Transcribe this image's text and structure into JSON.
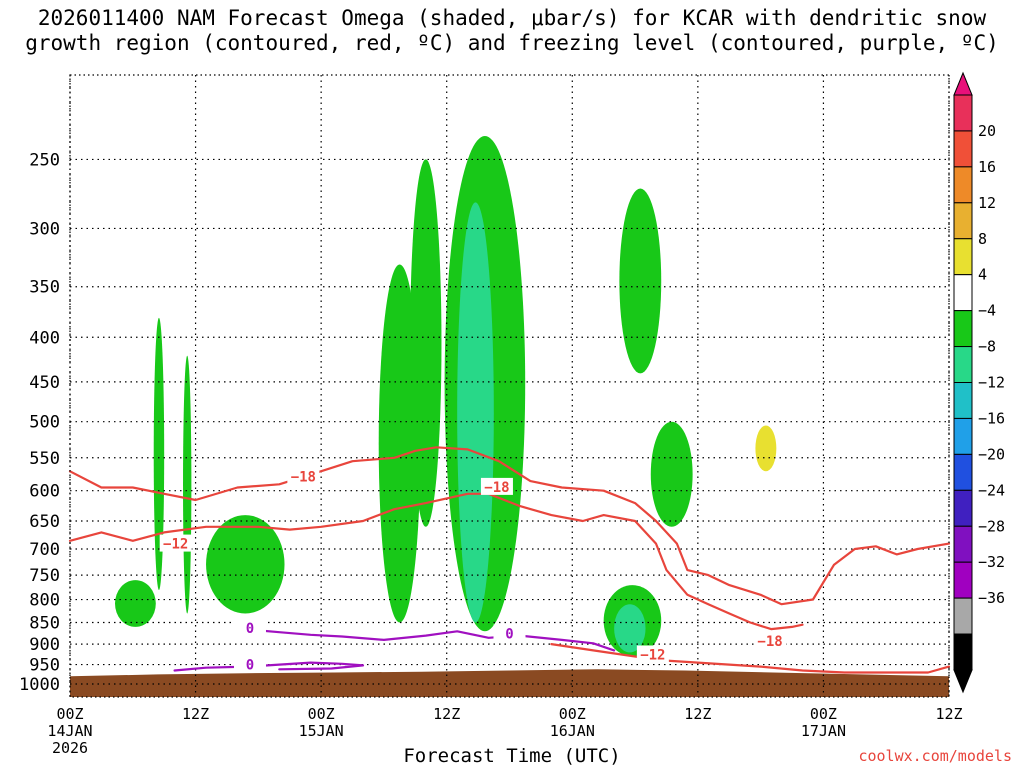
{
  "title": "2026011400 NAM Forecast Omega (shaded, μbar/s) for KCAR with dendritic snow\ngrowth region (contoured, red, ºC) and freezing level (contoured, purple, ºC)",
  "credit": "coolwx.com/models",
  "chart_data": {
    "type": "time-height cross section",
    "title": "2026011400 NAM Forecast Omega (shaded, μbar/s) for KCAR with dendritic snow growth region (contoured, red, ºC) and freezing level (contoured, purple, ºC)",
    "xlabel": "Forecast Time (UTC)",
    "ylabel": "",
    "x_range_hours": [
      0,
      84
    ],
    "y_range_hpa": [
      1035,
      200
    ],
    "y_scale": "log-pressure",
    "yticks": [
      250,
      300,
      350,
      400,
      450,
      500,
      550,
      600,
      650,
      700,
      750,
      800,
      850,
      900,
      950,
      1000
    ],
    "xticks": [
      {
        "hour": 0,
        "label": "00Z",
        "date": "14JAN",
        "year": "2026"
      },
      {
        "hour": 12,
        "label": "12Z",
        "date": "",
        "year": ""
      },
      {
        "hour": 24,
        "label": "00Z",
        "date": "15JAN",
        "year": ""
      },
      {
        "hour": 36,
        "label": "12Z",
        "date": "",
        "year": ""
      },
      {
        "hour": 48,
        "label": "00Z",
        "date": "16JAN",
        "year": ""
      },
      {
        "hour": 60,
        "label": "12Z",
        "date": "",
        "year": ""
      },
      {
        "hour": 72,
        "label": "00Z",
        "date": "17JAN",
        "year": ""
      },
      {
        "hour": 84,
        "label": "12Z",
        "date": "",
        "year": ""
      }
    ],
    "grid": true,
    "colorbar": {
      "units": "μbar/s",
      "labels": [
        "20",
        "16",
        "12",
        "8",
        "4",
        "−4",
        "−8",
        "−12",
        "−16",
        "−20",
        "−24",
        "−28",
        "−32",
        "−36"
      ],
      "colors": [
        "#e8305a",
        "#f05038",
        "#ee8a28",
        "#e8b030",
        "#e8e030",
        "#ffffff",
        "#18c818",
        "#28d888",
        "#20c0c8",
        "#20a0e8",
        "#2050e0",
        "#4020c0",
        "#8010c0",
        "#a000c0",
        "#a8a8a8",
        "#000000"
      ],
      "top_arrow_color": "#e8107a",
      "bottom_arrow_color": "#000000"
    },
    "contour_labels": [
      {
        "text": "−18",
        "hour": 22.3,
        "hpa": 578,
        "color": "#e8453c"
      },
      {
        "text": "−18",
        "hour": 40.8,
        "hpa": 594,
        "color": "#e8453c"
      },
      {
        "text": "−12",
        "hour": 10.1,
        "hpa": 690,
        "color": "#e8453c"
      },
      {
        "text": "−12",
        "hour": 55.7,
        "hpa": 925,
        "color": "#e8453c"
      },
      {
        "text": "−18",
        "hour": 66.9,
        "hpa": 893,
        "color": "#e8453c"
      },
      {
        "text": "0",
        "hour": 17.2,
        "hpa": 863,
        "color": "#a010c0"
      },
      {
        "text": "0",
        "hour": 42.0,
        "hpa": 875,
        "color": "#a010c0"
      },
      {
        "text": "0",
        "hour": 17.2,
        "hpa": 950,
        "color": "#a010c0"
      }
    ],
    "contours": [
      {
        "name": "dendritic-lower -18C",
        "color": "#e8453c",
        "points": [
          [
            0,
            685
          ],
          [
            3,
            670
          ],
          [
            6,
            685
          ],
          [
            9,
            670
          ],
          [
            13,
            660
          ],
          [
            18,
            660
          ],
          [
            21,
            665
          ],
          [
            24,
            660
          ],
          [
            28,
            650
          ],
          [
            31,
            630
          ],
          [
            34,
            620
          ],
          [
            38,
            605
          ],
          [
            40,
            605
          ],
          [
            43,
            625
          ],
          [
            46,
            640
          ],
          [
            49,
            650
          ],
          [
            51,
            640
          ],
          [
            54,
            650
          ],
          [
            56,
            690
          ],
          [
            57,
            740
          ],
          [
            59,
            790
          ],
          [
            61,
            810
          ],
          [
            63,
            830
          ],
          [
            65,
            850
          ],
          [
            67,
            865
          ],
          [
            69,
            860
          ],
          [
            70,
            855
          ]
        ]
      },
      {
        "name": "dendritic-upper -18C",
        "color": "#e8453c",
        "points": [
          [
            0,
            570
          ],
          [
            3,
            595
          ],
          [
            6,
            595
          ],
          [
            9,
            605
          ],
          [
            12,
            615
          ],
          [
            16,
            595
          ],
          [
            20,
            590
          ],
          [
            23,
            575
          ],
          [
            27,
            555
          ],
          [
            31,
            550
          ],
          [
            33,
            540
          ],
          [
            35,
            535
          ],
          [
            38,
            538
          ],
          [
            41,
            555
          ],
          [
            44,
            585
          ],
          [
            47,
            595
          ],
          [
            51,
            600
          ],
          [
            54,
            620
          ],
          [
            56,
            650
          ],
          [
            58,
            690
          ],
          [
            59,
            740
          ],
          [
            61,
            750
          ],
          [
            63,
            770
          ],
          [
            66,
            790
          ],
          [
            68,
            810
          ],
          [
            71,
            800
          ],
          [
            73,
            730
          ],
          [
            75,
            700
          ],
          [
            77,
            695
          ],
          [
            79,
            710
          ],
          [
            81,
            700
          ],
          [
            84,
            690
          ]
        ]
      },
      {
        "name": "dendritic -12C lower",
        "color": "#e8453c",
        "points": [
          [
            46,
            900
          ],
          [
            50,
            915
          ],
          [
            54,
            930
          ],
          [
            57,
            940
          ],
          [
            60,
            945
          ],
          [
            63,
            950
          ],
          [
            66,
            955
          ],
          [
            70,
            965
          ],
          [
            74,
            970
          ],
          [
            78,
            970
          ],
          [
            82,
            970
          ],
          [
            84,
            955
          ]
        ]
      },
      {
        "name": "freezing level 0C",
        "color": "#a010c0",
        "points": [
          [
            18,
            868
          ],
          [
            20,
            872
          ],
          [
            23,
            878
          ],
          [
            26,
            882
          ],
          [
            30,
            890
          ],
          [
            34,
            880
          ],
          [
            37,
            870
          ],
          [
            40,
            885
          ],
          [
            43,
            880
          ],
          [
            47,
            890
          ],
          [
            50,
            898
          ],
          [
            52,
            915
          ]
        ]
      },
      {
        "name": "freezing level 0C lower",
        "color": "#a010c0",
        "points": [
          [
            10,
            965
          ],
          [
            13,
            958
          ],
          [
            17,
            955
          ],
          [
            20,
            950
          ],
          [
            23,
            945
          ],
          [
            26,
            948
          ],
          [
            28,
            952
          ],
          [
            25,
            960
          ],
          [
            20,
            962
          ]
        ]
      }
    ],
    "omega_regions": [
      {
        "hours": [
          4.3,
          8.2
        ],
        "hpa": [
          760,
          860
        ],
        "value": -6
      },
      {
        "hours": [
          8.0,
          9.0
        ],
        "hpa": [
          380,
          780
        ],
        "value": -6
      },
      {
        "hours": [
          10.8,
          11.6
        ],
        "hpa": [
          420,
          830
        ],
        "value": -6
      },
      {
        "hours": [
          13.0,
          20.5
        ],
        "hpa": [
          640,
          830
        ],
        "value": -6
      },
      {
        "hours": [
          29.5,
          33.5
        ],
        "hpa": [
          330,
          850
        ],
        "value": -6
      },
      {
        "hours": [
          32.5,
          35.5
        ],
        "hpa": [
          250,
          660
        ],
        "value": -6
      },
      {
        "hours": [
          35.8,
          43.5
        ],
        "hpa": [
          235,
          870
        ],
        "value": -6
      },
      {
        "hours": [
          37.0,
          40.5
        ],
        "hpa": [
          280,
          850
        ],
        "value": -10
      },
      {
        "hours": [
          51.0,
          56.5
        ],
        "hpa": [
          770,
          930
        ],
        "value": -6
      },
      {
        "hours": [
          52.0,
          55.0
        ],
        "hpa": [
          810,
          920
        ],
        "value": -10
      },
      {
        "hours": [
          52.5,
          56.5
        ],
        "hpa": [
          270,
          440
        ],
        "value": -6
      },
      {
        "hours": [
          55.5,
          59.5
        ],
        "hpa": [
          500,
          660
        ],
        "value": -6
      },
      {
        "hours": [
          65.5,
          67.5
        ],
        "hpa": [
          505,
          570
        ],
        "value": 6
      }
    ],
    "terrain_hpa": [
      980,
      975,
      972,
      970,
      968,
      965,
      962,
      965,
      970,
      975,
      980
    ],
    "terrain_color": "#8a4a22"
  }
}
